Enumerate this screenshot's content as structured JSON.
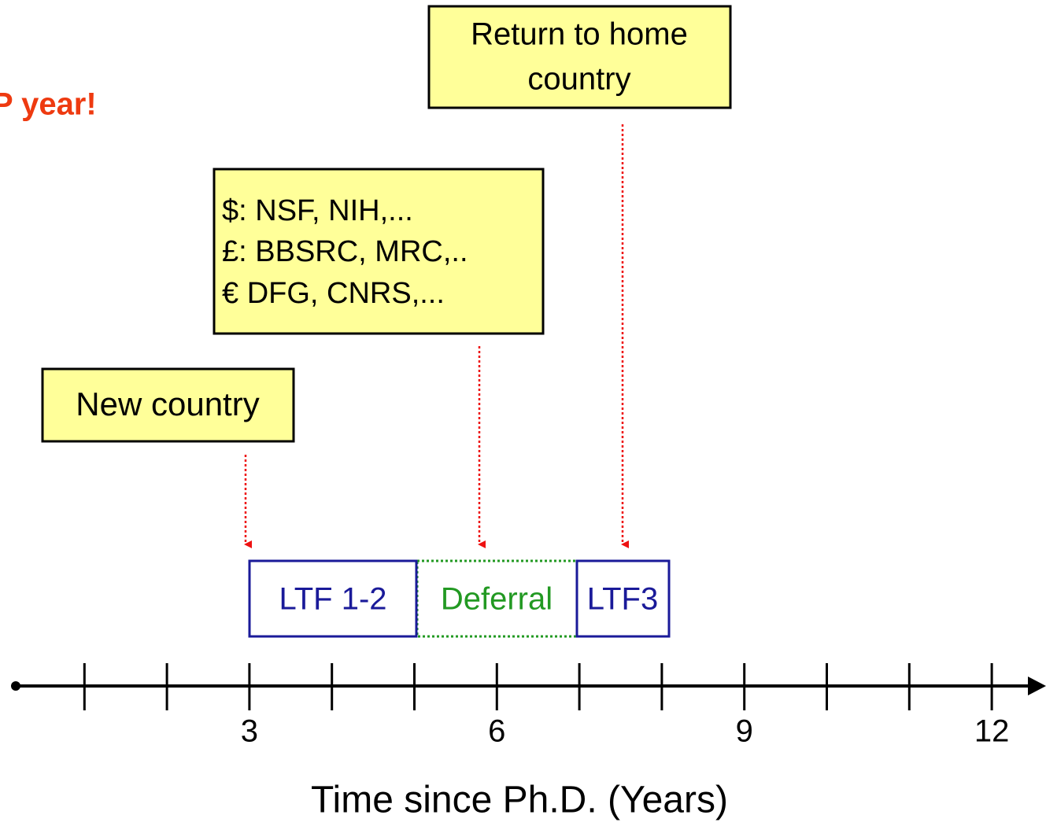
{
  "title": "P year!",
  "callouts": [
    {
      "lines": [
        "Return to home",
        "country"
      ]
    },
    {
      "lines": [
        "$: NSF, NIH,...",
        "£: BBSRC, MRC,..",
        "€ DFG, CNRS,..."
      ]
    },
    {
      "lines": [
        "New country"
      ]
    }
  ],
  "periods": [
    "LTF 1-2",
    "Deferral",
    "LTF3"
  ],
  "axis": {
    "tick_labels": [
      "3",
      "6",
      "9",
      "12"
    ],
    "label": "Time since Ph.D. (Years)"
  }
}
